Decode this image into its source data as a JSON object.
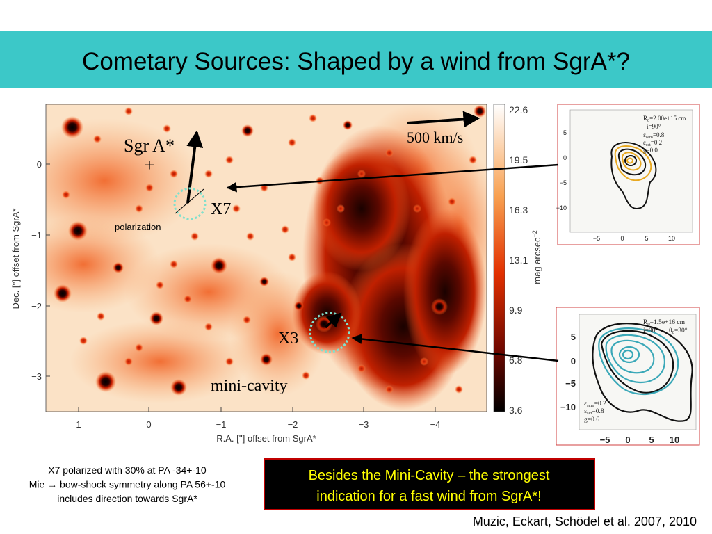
{
  "header": {
    "title": "Cometary Sources: Shaped by a wind from SgrA*?"
  },
  "figure": {
    "labels": {
      "sgra": "Sgr A*",
      "sgra_marker": "+",
      "velocity": "500 km/s",
      "x7": "X7",
      "polarization": "polarization",
      "x3": "X3",
      "mini_cavity": "mini-cavity"
    },
    "y_axis": {
      "label": "Dec. [''] offset from SgrA*",
      "ticks": [
        "0",
        "−1",
        "−2",
        "−3"
      ]
    },
    "x_axis": {
      "label": "R.A. [''] offset from SgrA*",
      "ticks": [
        "1",
        "0",
        "−1",
        "−2",
        "−3",
        "−4"
      ]
    },
    "colorbar": {
      "label": "mag arcsec",
      "label_sup": "−2",
      "ticks": [
        "22.6",
        "19.5",
        "16.3",
        "13.1",
        "9.9",
        "6.8",
        "3.6"
      ]
    }
  },
  "insets": [
    {
      "params": [
        {
          "sym": "R",
          "sub": "0",
          "rest": "=2.00e+15 cm"
        },
        {
          "rest": "i=90°"
        },
        {
          "sym": "ε",
          "sub": "sem",
          "rest": "=0.8"
        },
        {
          "sym": "ε",
          "sub": "sct",
          "rest": "=0.2"
        },
        {
          "rest": "g=0.0"
        }
      ],
      "y_ticks": [
        "5",
        "0",
        "−5",
        "−10"
      ],
      "x_ticks": [
        "−5",
        "0",
        "5",
        "10"
      ]
    },
    {
      "params": [
        {
          "sym": "R",
          "sub": "0",
          "rest": "=1.5e+16 cm"
        },
        {
          "rest": "i=90°"
        },
        {
          "sym": "θ",
          "sub": "0",
          "rest": "=30°"
        },
        {
          "sym": "ε",
          "sub": "scm",
          "rest": "=0.2"
        },
        {
          "sym": "ε",
          "sub": "sct",
          "rest": "=0.8"
        },
        {
          "rest": "g=0.6"
        }
      ],
      "y_ticks": [
        "5",
        "0",
        "−5",
        "−10"
      ],
      "x_ticks": [
        "−5",
        "0",
        "5",
        "10"
      ]
    }
  ],
  "caption": {
    "lines": [
      "X7 polarized with 30% at PA -34+-10",
      "Mie → bow-shock symmetry along PA 56+-10",
      "includes direction towards  SgrA*"
    ]
  },
  "highlight": {
    "lines": [
      "Besides the Mini-Cavity – the strongest",
      "indication for a fast wind from SgrA*!"
    ]
  },
  "citation": "Muzic, Eckart, Schödel et al. 2007, 2010"
}
